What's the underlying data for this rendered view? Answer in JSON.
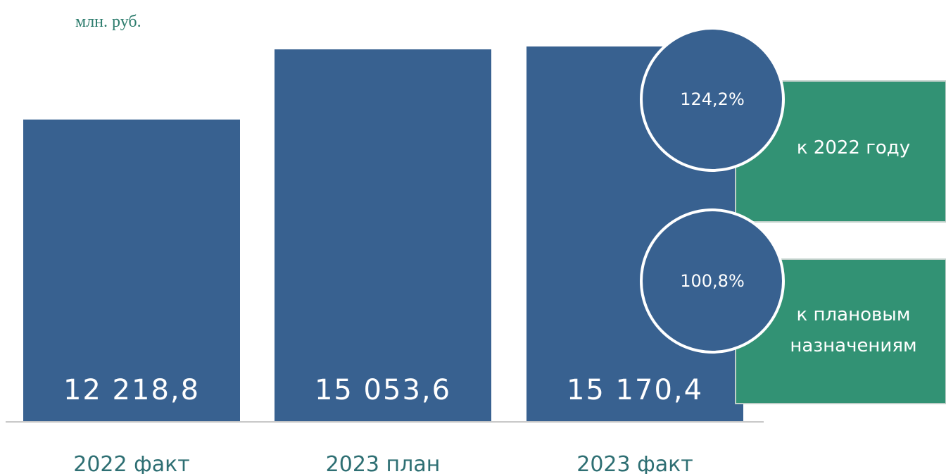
{
  "unit_label": "млн. руб.",
  "colors": {
    "bar": "#386190",
    "callout_box": "#329274",
    "axis": "#c8c8c8",
    "category_text": "#2e6f73"
  },
  "chart_data": {
    "type": "bar",
    "categories": [
      "2022 факт",
      "2023 план",
      "2023 факт"
    ],
    "values": [
      12218.8,
      15053.6,
      15170.4
    ],
    "value_labels": [
      "12 218,8",
      "15 053,6",
      "15 170,4"
    ],
    "ylim": [
      0,
      15500
    ],
    "grid": false,
    "legend": false
  },
  "callouts": [
    {
      "percent": "124,2%",
      "text_lines": [
        "к 2022 году"
      ]
    },
    {
      "percent": "100,8%",
      "text_lines": [
        "к плановым",
        "назначениям"
      ]
    }
  ]
}
